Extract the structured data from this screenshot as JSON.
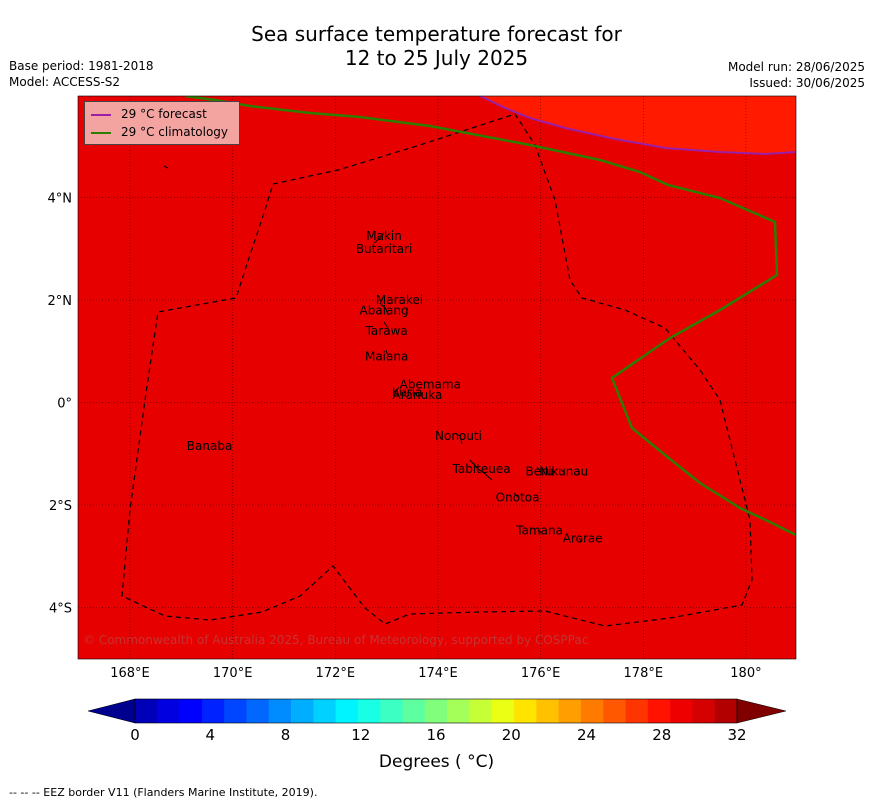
{
  "title_line1": "Sea surface temperature forecast for",
  "title_line2": "12 to 25 July 2025",
  "meta_left": [
    "Base period: 1981-2018",
    "Model: ACCESS-S2"
  ],
  "meta_right": [
    "Model run: 28/06/2025",
    "Issued: 30/06/2025"
  ],
  "colors": {
    "field": "#e60000",
    "hot": "#ff1a00",
    "forecast": "#9b1fa8",
    "climatology": "#2e7d00"
  },
  "legend": [
    {
      "label": "29 °C  forecast",
      "color": "#9b1fa8"
    },
    {
      "label": "29 °C  climatology",
      "color": "#2e7d00"
    }
  ],
  "lon_ticks": [
    "168°E",
    "170°E",
    "172°E",
    "174°E",
    "176°E",
    "178°E",
    "180°"
  ],
  "lat_ticks": [
    "4°N",
    "2°N",
    "0°",
    "2°S",
    "4°S"
  ],
  "islands": [
    {
      "name": "Makin",
      "lon": 172.95,
      "lat": 3.25
    },
    {
      "name": "Butaritari",
      "lon": 172.95,
      "lat": 3.0
    },
    {
      "name": "Marakei",
      "lon": 173.25,
      "lat": 2.0
    },
    {
      "name": "Abaiang",
      "lon": 172.95,
      "lat": 1.8
    },
    {
      "name": "Tarawa",
      "lon": 173.0,
      "lat": 1.4
    },
    {
      "name": "Maiana",
      "lon": 173.0,
      "lat": 0.9
    },
    {
      "name": "Abemama",
      "lon": 173.85,
      "lat": 0.35
    },
    {
      "name": "Kuria",
      "lon": 173.4,
      "lat": 0.2
    },
    {
      "name": "Aranuka",
      "lon": 173.6,
      "lat": 0.15
    },
    {
      "name": "Nonouti",
      "lon": 174.4,
      "lat": -0.65
    },
    {
      "name": "Banaba",
      "lon": 169.55,
      "lat": -0.85
    },
    {
      "name": "Tabiteuea",
      "lon": 174.85,
      "lat": -1.3
    },
    {
      "name": "Beru",
      "lon": 175.98,
      "lat": -1.35
    },
    {
      "name": "Nikunau",
      "lon": 176.45,
      "lat": -1.35
    },
    {
      "name": "Onotoa",
      "lon": 175.55,
      "lat": -1.85
    },
    {
      "name": "Tamana",
      "lon": 175.98,
      "lat": -2.5
    },
    {
      "name": "Arorae",
      "lon": 176.82,
      "lat": -2.65
    }
  ],
  "copyright": "© Commonwealth of Australia 2025, Bureau of Meteorology, supported by COSPPac",
  "colorbar": {
    "ticks": [
      "0",
      "4",
      "8",
      "12",
      "16",
      "20",
      "24",
      "28",
      "32"
    ],
    "label": "Degrees ( °C)",
    "colors": [
      "#00008f",
      "#0000b8",
      "#0000e0",
      "#0000ff",
      "#0022ff",
      "#0045ff",
      "#0068ff",
      "#008bff",
      "#00aeff",
      "#00d1ff",
      "#00f4ff",
      "#18ffe6",
      "#3bffc3",
      "#5eff9f",
      "#81ff7c",
      "#a4ff59",
      "#c7ff36",
      "#eaff13",
      "#ffe400",
      "#ffc100",
      "#ff9e00",
      "#ff7b00",
      "#ff5800",
      "#ff3500",
      "#ff1200",
      "#ee0000",
      "#d50000",
      "#b20000",
      "#800000"
    ]
  },
  "eez_note": "--  --  -- EEZ border V11 (Flanders Marine Institute, 2019)."
}
